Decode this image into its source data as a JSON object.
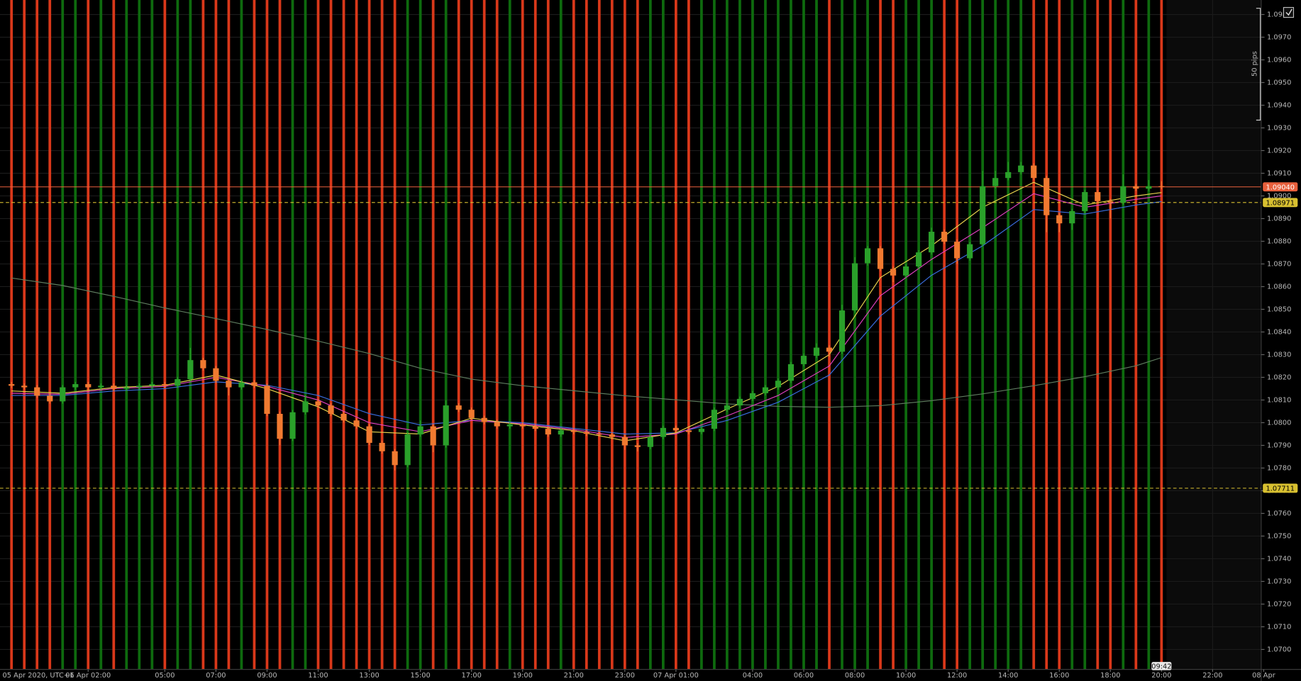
{
  "chart_data": {
    "type": "candlestick",
    "x_start_label": "05 Apr 2020, UTC+1",
    "x": [
      -1,
      -0.5,
      0,
      0.5,
      1,
      1.5,
      2,
      2.5,
      3,
      3.5,
      4,
      4.5,
      5,
      5.5,
      6,
      6.5,
      7,
      7.5,
      8,
      8.5,
      9,
      9.5,
      10,
      10.5,
      11,
      11.5,
      12,
      12.5,
      13,
      13.5,
      14,
      14.5,
      15,
      15.5,
      16,
      16.5,
      17,
      17.5,
      18,
      18.5,
      19,
      19.5,
      20,
      20.5,
      21,
      21.5,
      22,
      22.5,
      23,
      23.5,
      24,
      24.5,
      25,
      25.5,
      26,
      26.5,
      27,
      27.5,
      28,
      28.5,
      29,
      29.5,
      30,
      30.5,
      31,
      31.5,
      32,
      32.5,
      33,
      33.5,
      34,
      34.5,
      35,
      35.5,
      36,
      36.5,
      37,
      37.5,
      38,
      38.5,
      39,
      39.5,
      40,
      40.5,
      41,
      41.5,
      42,
      42.5,
      43,
      43.5,
      44
    ],
    "open": [
      1.0817,
      1.08163,
      1.08156,
      1.08119,
      1.08094,
      1.08156,
      1.0817,
      1.08156,
      1.08163,
      1.08149,
      1.08156,
      1.08163,
      1.0817,
      1.08163,
      1.08192,
      1.08276,
      1.0824,
      1.08185,
      1.08156,
      1.08178,
      1.08163,
      1.08039,
      1.07929,
      1.08046,
      1.08094,
      1.08076,
      1.08039,
      1.0801,
      1.07984,
      1.07911,
      1.07874,
      1.07813,
      1.07948,
      1.07984,
      1.079,
      1.08076,
      1.08057,
      1.08021,
      1.08003,
      1.07984,
      1.07992,
      1.07984,
      1.07973,
      1.07948,
      1.07966,
      1.07959,
      1.07951,
      1.07948,
      1.07937,
      1.079,
      1.07893,
      1.07937,
      1.07977,
      1.07966,
      1.07959,
      1.07973,
      1.08057,
      1.08076,
      1.08105,
      1.0813,
      1.08156,
      1.08185,
      1.08258,
      1.08295,
      1.08331,
      1.08313,
      1.08495,
      1.08703,
      1.08769,
      1.08678,
      1.08649,
      1.08689,
      1.08751,
      1.08842,
      1.08798,
      1.08725,
      1.08787,
      1.09043,
      1.09079,
      1.09105,
      1.09134,
      1.09079,
      1.08915,
      1.08879,
      1.08933,
      1.09017,
      1.08977,
      1.0897,
      1.09043,
      1.09032,
      1.09043
    ],
    "high": [
      1.0818,
      1.08173,
      1.08166,
      1.08129,
      1.08166,
      1.0818,
      1.0818,
      1.08173,
      1.08173,
      1.08166,
      1.08173,
      1.0818,
      1.0818,
      1.08202,
      1.0833,
      1.08286,
      1.0825,
      1.08195,
      1.08188,
      1.08188,
      1.08173,
      1.08049,
      1.08056,
      1.0812,
      1.08104,
      1.08086,
      1.08049,
      1.0802,
      1.07994,
      1.07921,
      1.07884,
      1.07958,
      1.0801,
      1.07994,
      1.081,
      1.08086,
      1.08067,
      1.08031,
      1.08013,
      1.08002,
      1.08002,
      1.07994,
      1.07983,
      1.07976,
      1.07976,
      1.07969,
      1.07961,
      1.07958,
      1.07947,
      1.0791,
      1.07947,
      1.07987,
      1.07987,
      1.07976,
      1.07983,
      1.08067,
      1.08086,
      1.08115,
      1.0814,
      1.08166,
      1.08195,
      1.08268,
      1.08305,
      1.0835,
      1.08341,
      1.0852,
      1.0873,
      1.08779,
      1.08779,
      1.08688,
      1.08699,
      1.08761,
      1.0886,
      1.08852,
      1.08808,
      1.08797,
      1.0911,
      1.0911,
      1.0915,
      1.0915,
      1.09144,
      1.09089,
      1.08925,
      1.08943,
      1.09027,
      1.09027,
      1.08987,
      1.09095,
      1.09053,
      1.0907,
      1.09065
    ],
    "low": [
      1.08153,
      1.08146,
      1.08109,
      1.08084,
      1.08084,
      1.08146,
      1.08146,
      1.08146,
      1.08139,
      1.08139,
      1.08146,
      1.08153,
      1.08153,
      1.08153,
      1.08182,
      1.0823,
      1.08175,
      1.0812,
      1.08146,
      1.08153,
      1.08029,
      1.079,
      1.07919,
      1.08036,
      1.08066,
      1.08029,
      1.08,
      1.07974,
      1.07901,
      1.07864,
      1.0779,
      1.07803,
      1.07938,
      1.0787,
      1.0789,
      1.08047,
      1.08011,
      1.07993,
      1.07974,
      1.07974,
      1.07974,
      1.07963,
      1.07938,
      1.07938,
      1.07949,
      1.07941,
      1.07938,
      1.07927,
      1.0788,
      1.07873,
      1.07883,
      1.07927,
      1.07956,
      1.07949,
      1.07949,
      1.07963,
      1.08047,
      1.08066,
      1.08095,
      1.0812,
      1.08146,
      1.08175,
      1.08248,
      1.08285,
      1.0829,
      1.08303,
      1.08485,
      1.08693,
      1.08668,
      1.0862,
      1.08639,
      1.08679,
      1.08741,
      1.08788,
      1.087,
      1.08715,
      1.08777,
      1.09033,
      1.09069,
      1.09095,
      1.09069,
      1.0884,
      1.0884,
      1.0885,
      1.08923,
      1.08967,
      1.089,
      1.0896,
      1.09022,
      1.09022,
      1.0903
    ],
    "close": [
      1.08163,
      1.08156,
      1.08119,
      1.08094,
      1.08156,
      1.0817,
      1.08156,
      1.08163,
      1.08149,
      1.08156,
      1.08163,
      1.0817,
      1.08163,
      1.08192,
      1.08276,
      1.0824,
      1.08185,
      1.08156,
      1.08178,
      1.08163,
      1.08039,
      1.07929,
      1.08046,
      1.08094,
      1.08076,
      1.08039,
      1.0801,
      1.07984,
      1.07911,
      1.07874,
      1.07813,
      1.07948,
      1.07984,
      1.079,
      1.08076,
      1.08057,
      1.08021,
      1.08003,
      1.07984,
      1.07992,
      1.07984,
      1.07973,
      1.07948,
      1.07966,
      1.07959,
      1.07951,
      1.07948,
      1.07937,
      1.079,
      1.07893,
      1.07937,
      1.07977,
      1.07966,
      1.07959,
      1.07973,
      1.08057,
      1.08076,
      1.08105,
      1.0813,
      1.08156,
      1.08185,
      1.08258,
      1.08295,
      1.08331,
      1.08313,
      1.08495,
      1.08703,
      1.08769,
      1.08678,
      1.08649,
      1.08689,
      1.08751,
      1.08842,
      1.08798,
      1.08725,
      1.08787,
      1.09043,
      1.09079,
      1.09105,
      1.09134,
      1.09079,
      1.08915,
      1.08879,
      1.08933,
      1.09017,
      1.08977,
      1.0897,
      1.09043,
      1.09032,
      1.09043,
      1.0904
    ],
    "up_color": "#2aa02a",
    "down_color": "#f07a30",
    "up_stripe_color": "#0e6a0e",
    "down_stripe_color": "#d9381a",
    "indicators": [
      {
        "color": "#5f7d5f",
        "x": [
          -1,
          1,
          3,
          5,
          7,
          9,
          11,
          13,
          15,
          17,
          19,
          21,
          23,
          25,
          27,
          29,
          31,
          33,
          35,
          37,
          39,
          41,
          43,
          44
        ],
        "values": [
          1.08638,
          1.08605,
          1.08557,
          1.08506,
          1.08459,
          1.08411,
          1.0836,
          1.08305,
          1.0824,
          1.08192,
          1.08163,
          1.08141,
          1.08119,
          1.08101,
          1.08083,
          1.08072,
          1.08068,
          1.08075,
          1.08097,
          1.08127,
          1.08163,
          1.08203,
          1.08251,
          1.08287
        ]
      },
      {
        "color": "#3a6ee0",
        "x": [
          -1,
          1,
          3,
          5,
          7,
          9,
          11,
          13,
          15,
          17,
          19,
          21,
          23,
          25,
          27,
          29,
          31,
          33,
          35,
          37,
          39,
          41,
          43,
          44
        ],
        "values": [
          1.0812,
          1.0812,
          1.0814,
          1.0815,
          1.0818,
          1.08165,
          1.0812,
          1.0804,
          1.0799,
          1.0801,
          1.08,
          1.07975,
          1.0795,
          1.07955,
          1.0801,
          1.0809,
          1.0821,
          1.0847,
          1.0865,
          1.0878,
          1.0894,
          1.0892,
          1.0896,
          1.08975
        ]
      },
      {
        "color": "#e040c0",
        "x": [
          -1,
          1,
          3,
          5,
          7,
          9,
          11,
          13,
          15,
          17,
          19,
          21,
          23,
          25,
          27,
          29,
          31,
          33,
          35,
          37,
          39,
          41,
          43,
          44
        ],
        "values": [
          1.0813,
          1.08125,
          1.0815,
          1.0816,
          1.082,
          1.0816,
          1.081,
          1.08,
          1.0796,
          1.0801,
          1.07995,
          1.0797,
          1.07935,
          1.0795,
          1.0803,
          1.0812,
          1.0825,
          1.0856,
          1.0872,
          1.0886,
          1.0901,
          1.0895,
          1.08985,
          1.09
        ]
      },
      {
        "color": "#e8d44d",
        "x": [
          -1,
          1,
          3,
          5,
          7,
          9,
          11,
          13,
          15,
          17,
          19,
          21,
          23,
          25,
          27,
          29,
          31,
          33,
          35,
          37,
          39,
          41,
          43,
          44
        ],
        "values": [
          1.0814,
          1.0813,
          1.08155,
          1.08165,
          1.0821,
          1.0815,
          1.0807,
          1.0796,
          1.0795,
          1.0802,
          1.0799,
          1.07965,
          1.0792,
          1.07955,
          1.0806,
          1.0816,
          1.083,
          1.0864,
          1.0878,
          1.0895,
          1.0906,
          1.0896,
          1.09,
          1.09015
        ]
      }
    ],
    "price_lines": [
      {
        "value": 1.0904,
        "label": "1.09040",
        "color": "#e8603c",
        "dashed": false,
        "label_text_color": "#ffffff"
      },
      {
        "value": 1.08971,
        "label": "1.08971",
        "color": "#d8c030",
        "dashed": true,
        "label_text_color": "#000000"
      },
      {
        "value": 1.07711,
        "label": "1.07711",
        "color": "#d8c030",
        "dashed": true,
        "label_text_color": "#000000"
      }
    ],
    "scale_label": "50 pips",
    "countdown": "09:42",
    "grid": true,
    "xlim": [
      -1.45,
      47.9
    ],
    "xticks": [
      {
        "value": 2,
        "label": "06 Apr 02:00"
      },
      {
        "value": 5,
        "label": "05:00"
      },
      {
        "value": 7,
        "label": "07:00"
      },
      {
        "value": 9,
        "label": "09:00"
      },
      {
        "value": 11,
        "label": "11:00"
      },
      {
        "value": 13,
        "label": "13:00"
      },
      {
        "value": 15,
        "label": "15:00"
      },
      {
        "value": 17,
        "label": "17:00"
      },
      {
        "value": 19,
        "label": "19:00"
      },
      {
        "value": 21,
        "label": "21:00"
      },
      {
        "value": 23,
        "label": "23:00"
      },
      {
        "value": 25,
        "label": "07 Apr 01:00"
      },
      {
        "value": 28,
        "label": "04:00"
      },
      {
        "value": 30,
        "label": "06:00"
      },
      {
        "value": 32,
        "label": "08:00"
      },
      {
        "value": 34,
        "label": "10:00"
      },
      {
        "value": 36,
        "label": "12:00"
      },
      {
        "value": 38,
        "label": "14:00"
      },
      {
        "value": 40,
        "label": "16:00"
      },
      {
        "value": 42,
        "label": "18:00"
      },
      {
        "value": 44,
        "label": "20:00"
      },
      {
        "value": 46,
        "label": "22:00"
      },
      {
        "value": 48,
        "label": "08 Apr"
      }
    ],
    "ylim": [
      1.06912,
      1.09864
    ],
    "yticks": [
      {
        "value": 1.07,
        "label": "1.0700"
      },
      {
        "value": 1.071,
        "label": "1.0710"
      },
      {
        "value": 1.072,
        "label": "1.0720"
      },
      {
        "value": 1.073,
        "label": "1.0730"
      },
      {
        "value": 1.074,
        "label": "1.0740"
      },
      {
        "value": 1.075,
        "label": "1.0750"
      },
      {
        "value": 1.076,
        "label": "1.0760"
      },
      {
        "value": 1.077,
        "label": "1.0770"
      },
      {
        "value": 1.078,
        "label": "1.0780"
      },
      {
        "value": 1.079,
        "label": "1.0790"
      },
      {
        "value": 1.08,
        "label": "1.0800"
      },
      {
        "value": 1.081,
        "label": "1.0810"
      },
      {
        "value": 1.082,
        "label": "1.0820"
      },
      {
        "value": 1.083,
        "label": "1.0830"
      },
      {
        "value": 1.084,
        "label": "1.0840"
      },
      {
        "value": 1.085,
        "label": "1.0850"
      },
      {
        "value": 1.086,
        "label": "1.0860"
      },
      {
        "value": 1.087,
        "label": "1.0870"
      },
      {
        "value": 1.088,
        "label": "1.0880"
      },
      {
        "value": 1.089,
        "label": "1.0890"
      },
      {
        "value": 1.09,
        "label": "1.0900"
      },
      {
        "value": 1.091,
        "label": "1.0910"
      },
      {
        "value": 1.092,
        "label": "1.0920"
      },
      {
        "value": 1.093,
        "label": "1.0930"
      },
      {
        "value": 1.094,
        "label": "1.0940"
      },
      {
        "value": 1.095,
        "label": "1.0950"
      },
      {
        "value": 1.096,
        "label": "1.0960"
      },
      {
        "value": 1.097,
        "label": "1.0970"
      },
      {
        "value": 1.098,
        "label": "1.0980"
      }
    ]
  }
}
